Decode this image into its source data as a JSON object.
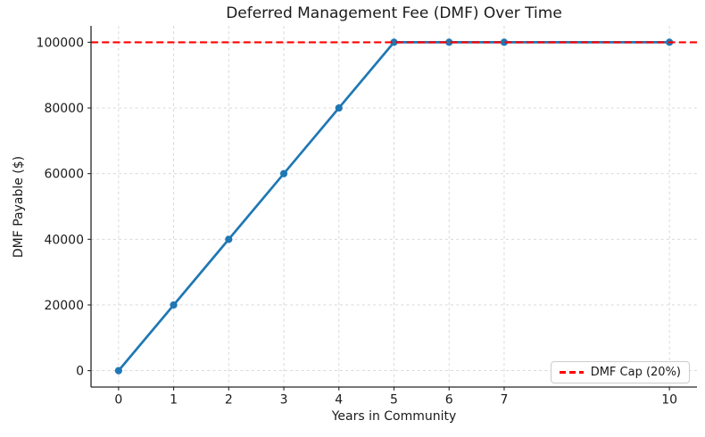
{
  "chart_data": {
    "type": "line",
    "title": "Deferred Management Fee (DMF) Over Time",
    "xlabel": "Years in Community",
    "ylabel": "DMF Payable ($)",
    "x": [
      0,
      1,
      2,
      3,
      4,
      5,
      6,
      7,
      10
    ],
    "y": [
      0,
      20000,
      40000,
      60000,
      80000,
      100000,
      100000,
      100000,
      100000
    ],
    "series_name": "DMF Payable",
    "xticks": [
      0,
      1,
      2,
      3,
      4,
      5,
      6,
      7,
      10
    ],
    "yticks": [
      0,
      20000,
      40000,
      60000,
      80000,
      100000
    ],
    "xlim": [
      -0.5,
      10.5
    ],
    "ylim": [
      -5000,
      105000
    ],
    "grid": true,
    "cap_line": {
      "value": 100000,
      "style": "dashed"
    },
    "legend": {
      "position": "lower right",
      "entries": [
        {
          "label": "DMF Cap (20%)",
          "style": "dashed"
        }
      ]
    },
    "colors": {
      "line": "#1f77b4",
      "marker": "#1f77b4",
      "cap": "#ff0000",
      "grid": "#cfcfcf",
      "spine": "#262626",
      "text": "#1a1a1a"
    }
  }
}
